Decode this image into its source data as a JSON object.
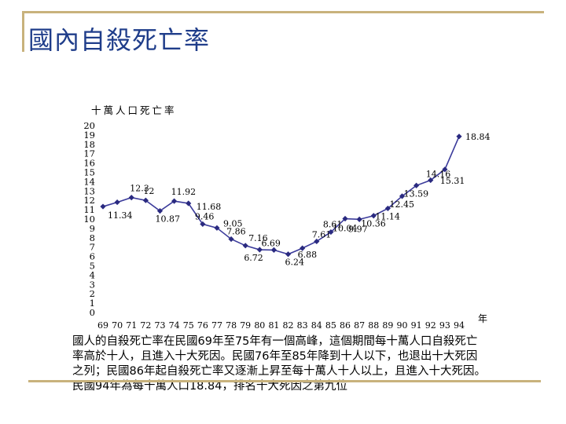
{
  "title": "國內自殺死亡率",
  "caption_lines": [
    "國人的自殺死亡率在民國69年至75年有一個高峰，這個期間每十萬人口自殺死亡",
    "率高於十人，且進入十大死因。民國76年至85年降到十人以下，也退出十大死因",
    "之列；民國86年起自殺死亡率又逐漸上昇至每十萬人十人以上，且進入十大死因。",
    "民國94年為每十萬人口18.84，排名十大死因之第九位"
  ],
  "colors": {
    "frame": "#c8b27c",
    "title": "#1f3d8a",
    "line": "#3b3b9b",
    "marker": "#2a2a80"
  },
  "chart_data": {
    "type": "line",
    "ylabel": "十萬人口死亡率",
    "xlabel": "年",
    "ylim": [
      0,
      20
    ],
    "xlim": [
      69,
      94
    ],
    "yticks": [
      "0",
      "1",
      "2",
      "3",
      "4",
      "5",
      "6",
      "7",
      "8",
      "9",
      "10",
      "11",
      "12",
      "13",
      "14",
      "15",
      "16",
      "17",
      "18",
      "19",
      "20"
    ],
    "xticks": [
      "69",
      "70",
      "71",
      "72",
      "73",
      "74",
      "75",
      "76",
      "77",
      "78",
      "79",
      "80",
      "81",
      "82",
      "83",
      "84",
      "85",
      "86",
      "87",
      "88",
      "89",
      "90",
      "91",
      "92",
      "93",
      "94"
    ],
    "grid": false,
    "series": [
      {
        "x": [
          69,
          70,
          71,
          72,
          73,
          74,
          75,
          76,
          77,
          78,
          79,
          80,
          81,
          82,
          83,
          84,
          85,
          86,
          87,
          88,
          89,
          90,
          91,
          92,
          93,
          94
        ],
        "values": [
          11.34,
          11.8,
          12.3,
          12.0,
          10.87,
          11.92,
          11.68,
          9.46,
          9.05,
          7.86,
          7.16,
          6.72,
          6.69,
          6.24,
          6.88,
          7.61,
          8.61,
          10.04,
          9.97,
          10.36,
          11.14,
          12.45,
          13.59,
          14.16,
          15.31,
          18.84
        ],
        "labels": [
          "11.34",
          "",
          "12.3",
          "12",
          "10.87",
          "11.92",
          "11.68",
          "9.46",
          "9.05",
          "7.86",
          "7.16",
          "6.72",
          "6.69",
          "6.24",
          "6.88",
          "7.61",
          "8.61",
          "10.04",
          "9.97",
          "10.36",
          "11.14",
          "12.45",
          "13.59",
          "14.16",
          "15.31",
          "18.84"
        ]
      }
    ]
  }
}
